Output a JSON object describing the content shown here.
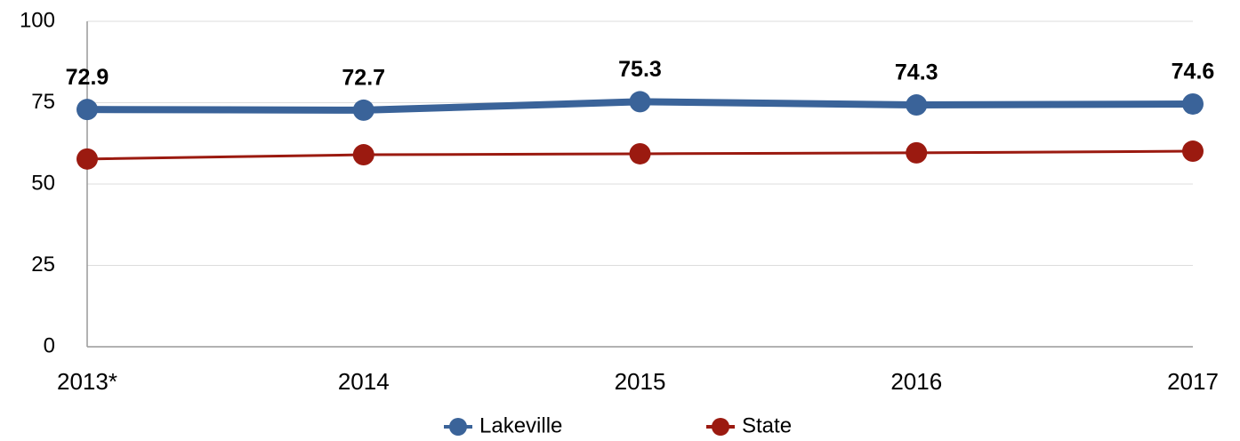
{
  "chart_data": {
    "type": "line",
    "categories": [
      "2013*",
      "2014",
      "2015",
      "2016",
      "2017"
    ],
    "series": [
      {
        "name": "Lakeville",
        "color": "#3a6399",
        "values": [
          72.9,
          72.7,
          75.3,
          74.3,
          74.6
        ]
      },
      {
        "name": "State",
        "color": "#9b1a10",
        "values": [
          57.7,
          59,
          59.3,
          59.6,
          60.1
        ]
      }
    ],
    "ylim": [
      0,
      100
    ],
    "yticks": [
      0,
      25,
      50,
      75,
      100
    ],
    "grid": true,
    "legend": "bottom"
  }
}
